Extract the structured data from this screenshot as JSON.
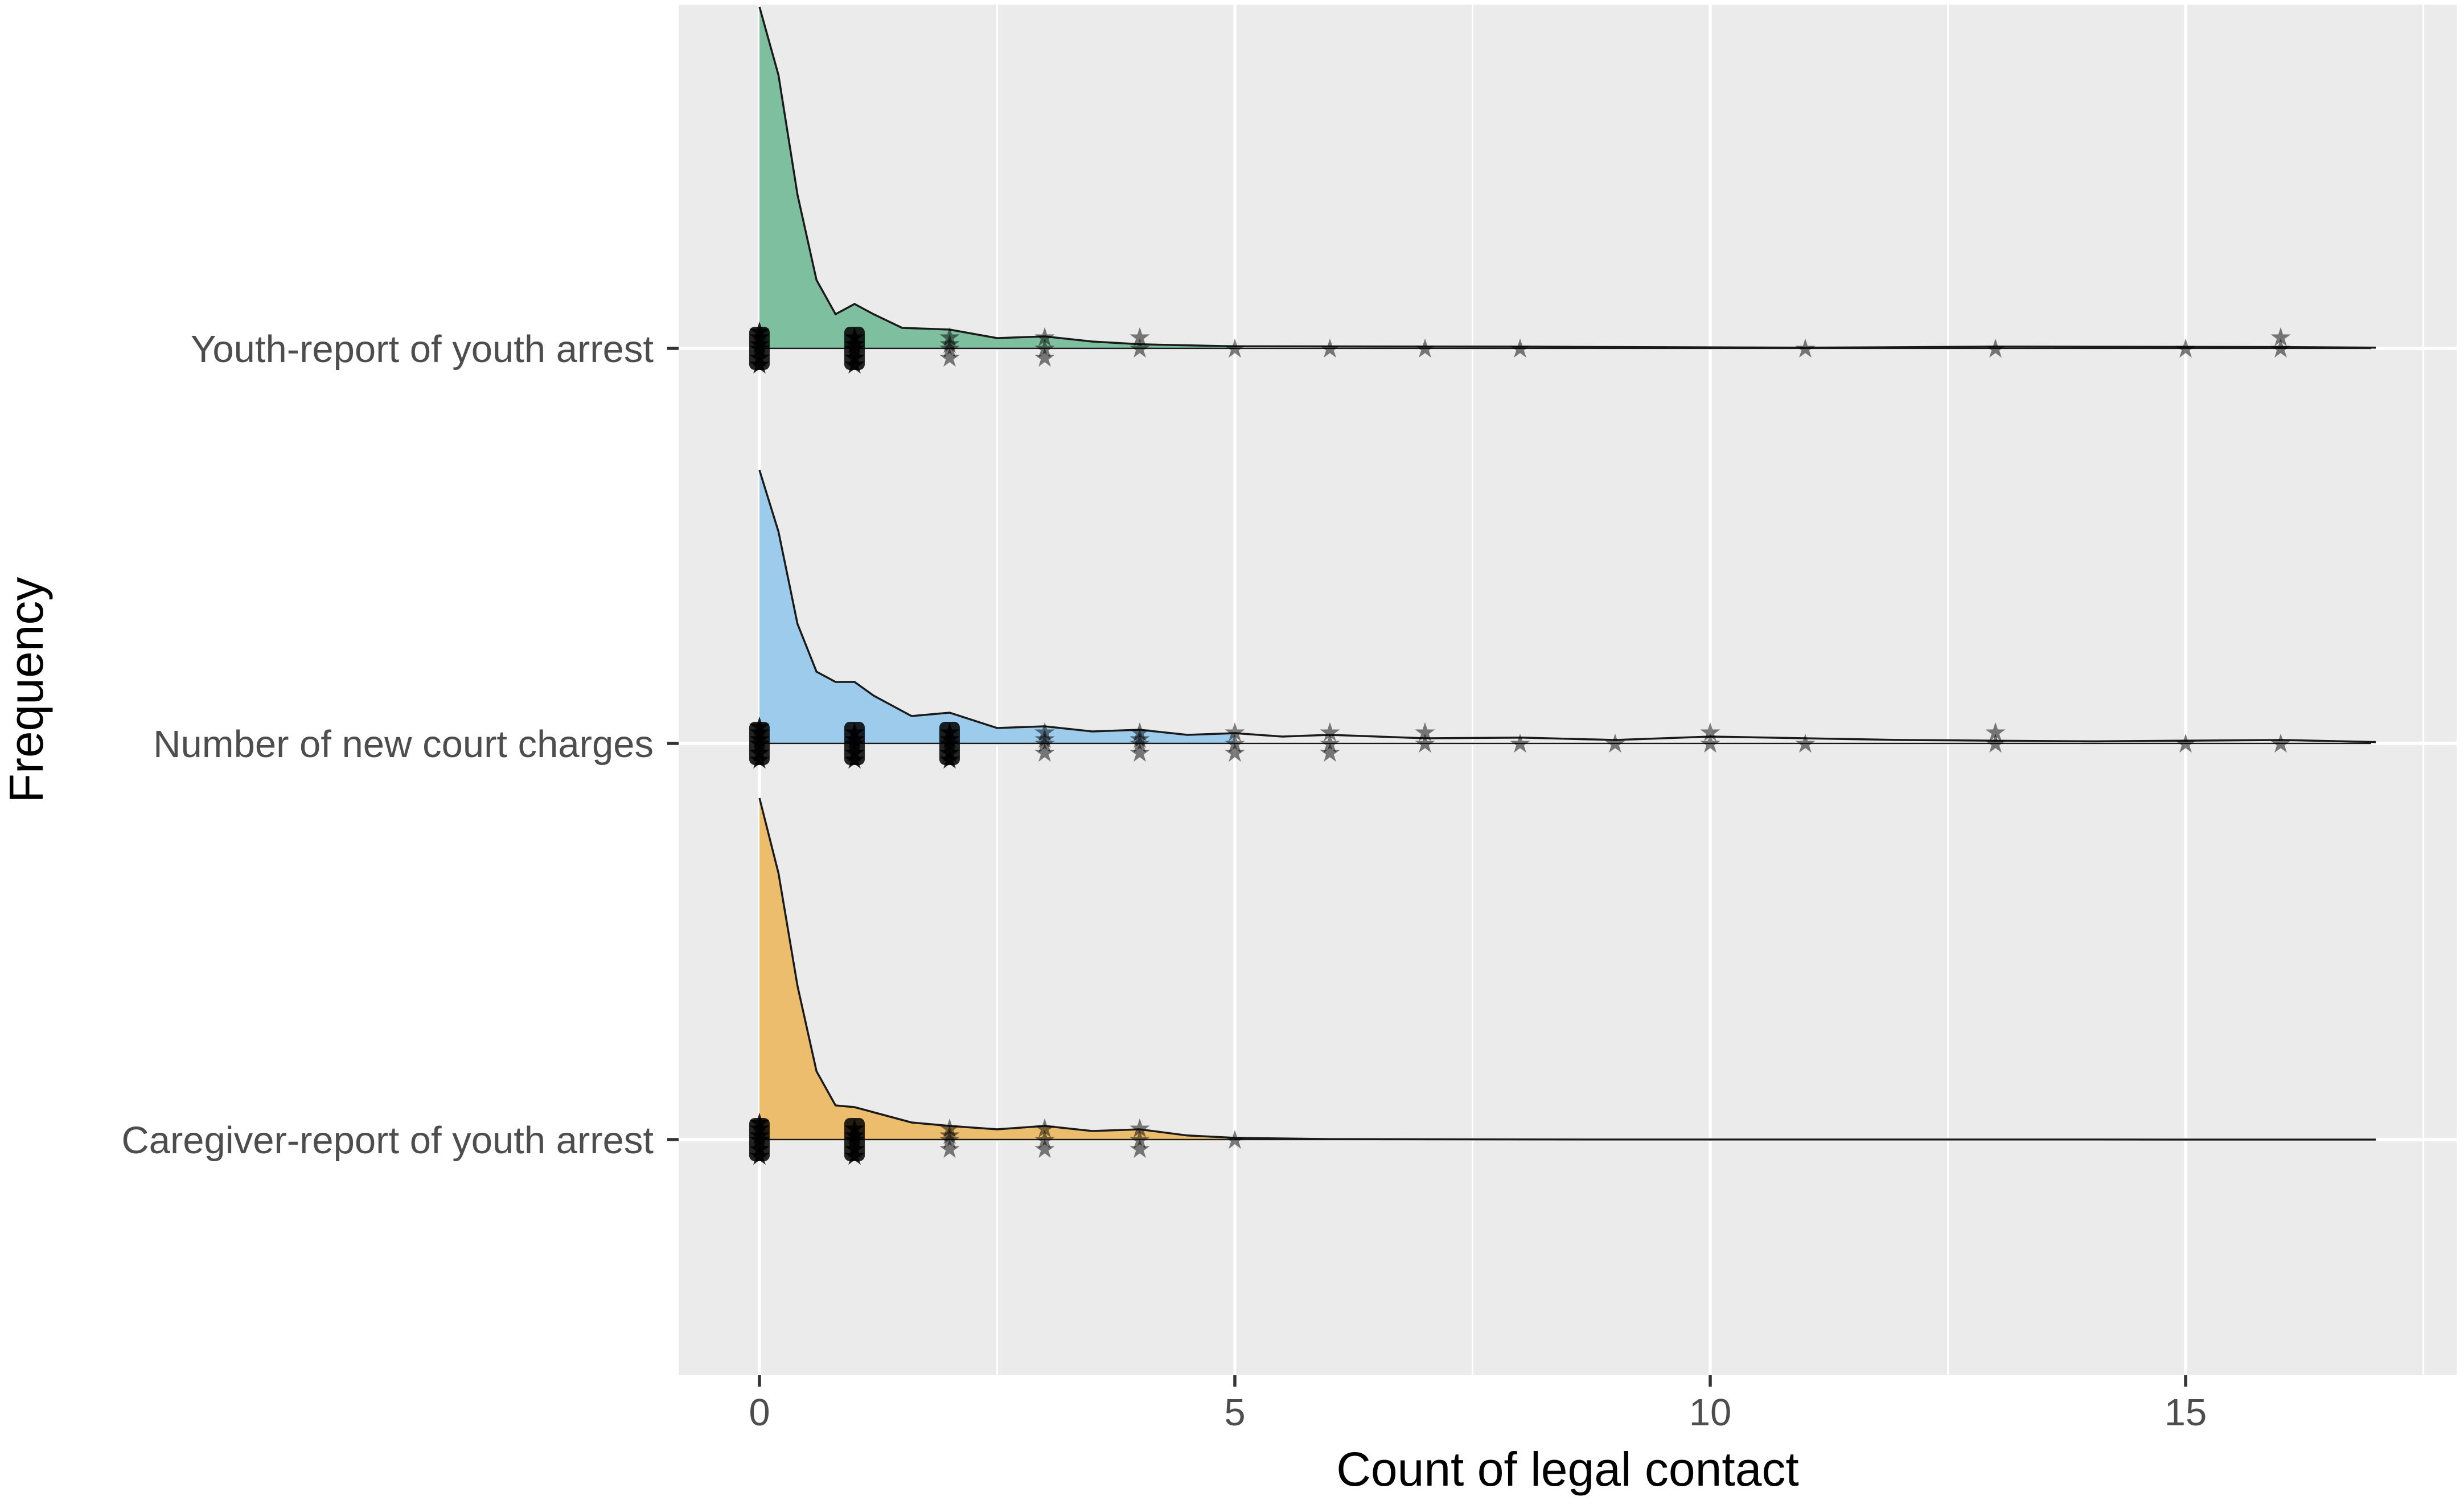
{
  "chart_data": {
    "type": "ridgeline",
    "xlabel": "Count of legal contact",
    "ylabel": "Frequency",
    "xlim": [
      -0.85,
      17.85
    ],
    "x_ticks": [
      0,
      5,
      10,
      15
    ],
    "grid": true,
    "legend": "none",
    "series": [
      {
        "name": "Youth-report of youth arrest",
        "color": "#7ebf9f",
        "density": [
          [
            0,
            1.0
          ],
          [
            0.2,
            0.8
          ],
          [
            0.4,
            0.45
          ],
          [
            0.6,
            0.2
          ],
          [
            0.8,
            0.1
          ],
          [
            1.0,
            0.13
          ],
          [
            1.2,
            0.1
          ],
          [
            1.5,
            0.06
          ],
          [
            2.0,
            0.055
          ],
          [
            2.5,
            0.03
          ],
          [
            3.0,
            0.035
          ],
          [
            3.5,
            0.02
          ],
          [
            4.0,
            0.012
          ],
          [
            5.0,
            0.006
          ],
          [
            8.0,
            0.005
          ],
          [
            11.0,
            0.002
          ],
          [
            13.0,
            0.005
          ],
          [
            16.0,
            0.004
          ],
          [
            17.0,
            0.002
          ]
        ],
        "points": [
          {
            "x": 0,
            "n": 6
          },
          {
            "x": 1,
            "n": 5
          },
          {
            "x": 2,
            "n": 4
          },
          {
            "x": 3,
            "n": 3
          },
          {
            "x": 4,
            "n": 2
          },
          {
            "x": 5,
            "n": 1
          },
          {
            "x": 6,
            "n": 1
          },
          {
            "x": 7,
            "n": 1
          },
          {
            "x": 8,
            "n": 1
          },
          {
            "x": 11,
            "n": 1
          },
          {
            "x": 13,
            "n": 1
          },
          {
            "x": 15,
            "n": 1
          },
          {
            "x": 16,
            "n": 2
          }
        ]
      },
      {
        "name": "Number of new court charges",
        "color": "#9ccbeb",
        "density": [
          [
            0,
            0.8
          ],
          [
            0.2,
            0.62
          ],
          [
            0.4,
            0.35
          ],
          [
            0.6,
            0.21
          ],
          [
            0.8,
            0.18
          ],
          [
            1.0,
            0.18
          ],
          [
            1.2,
            0.14
          ],
          [
            1.6,
            0.08
          ],
          [
            2.0,
            0.09
          ],
          [
            2.5,
            0.045
          ],
          [
            3.0,
            0.05
          ],
          [
            3.5,
            0.035
          ],
          [
            4.0,
            0.04
          ],
          [
            4.5,
            0.025
          ],
          [
            5.0,
            0.03
          ],
          [
            5.5,
            0.02
          ],
          [
            6.0,
            0.025
          ],
          [
            7.0,
            0.015
          ],
          [
            8.0,
            0.017
          ],
          [
            9.0,
            0.01
          ],
          [
            10.0,
            0.02
          ],
          [
            11.0,
            0.015
          ],
          [
            12.0,
            0.01
          ],
          [
            13.0,
            0.008
          ],
          [
            14.0,
            0.006
          ],
          [
            15.0,
            0.008
          ],
          [
            16.0,
            0.01
          ],
          [
            17.0,
            0.004
          ]
        ],
        "points": [
          {
            "x": 0,
            "n": 6
          },
          {
            "x": 1,
            "n": 5
          },
          {
            "x": 2,
            "n": 5
          },
          {
            "x": 3,
            "n": 4
          },
          {
            "x": 4,
            "n": 4
          },
          {
            "x": 5,
            "n": 3
          },
          {
            "x": 6,
            "n": 3
          },
          {
            "x": 7,
            "n": 2
          },
          {
            "x": 8,
            "n": 1
          },
          {
            "x": 9,
            "n": 1
          },
          {
            "x": 10,
            "n": 2
          },
          {
            "x": 11,
            "n": 1
          },
          {
            "x": 13,
            "n": 2
          },
          {
            "x": 15,
            "n": 1
          },
          {
            "x": 16,
            "n": 1
          }
        ]
      },
      {
        "name": "Caregiver-report of youth arrest",
        "color": "#ebbd6d",
        "density": [
          [
            0,
            1.0
          ],
          [
            0.2,
            0.78
          ],
          [
            0.4,
            0.45
          ],
          [
            0.6,
            0.2
          ],
          [
            0.8,
            0.1
          ],
          [
            1.0,
            0.095
          ],
          [
            1.2,
            0.08
          ],
          [
            1.6,
            0.05
          ],
          [
            2.0,
            0.04
          ],
          [
            2.5,
            0.03
          ],
          [
            3.0,
            0.04
          ],
          [
            3.5,
            0.025
          ],
          [
            4.0,
            0.03
          ],
          [
            4.5,
            0.012
          ],
          [
            5.0,
            0.005
          ],
          [
            6.0,
            0.0015
          ],
          [
            8.0,
            0.0004
          ],
          [
            17.0,
            0.0
          ]
        ],
        "points": [
          {
            "x": 0,
            "n": 6
          },
          {
            "x": 1,
            "n": 5
          },
          {
            "x": 2,
            "n": 4
          },
          {
            "x": 3,
            "n": 3
          },
          {
            "x": 4,
            "n": 3
          },
          {
            "x": 5,
            "n": 1
          }
        ]
      }
    ]
  }
}
